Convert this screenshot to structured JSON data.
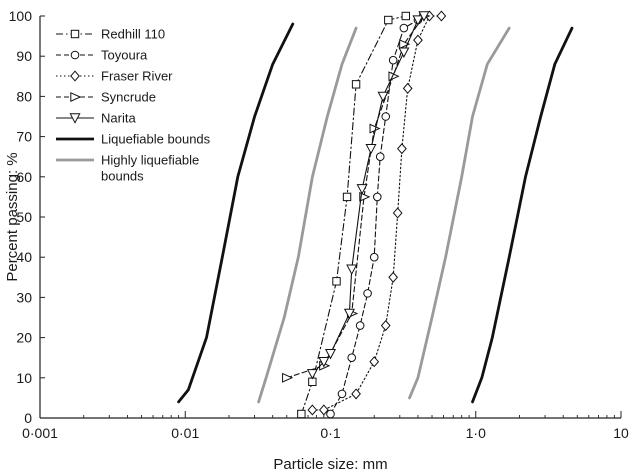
{
  "chart_data": {
    "type": "line",
    "xlabel": "Particle size: mm",
    "ylabel": "Percent passing: %",
    "x_scale": "log",
    "xlim": [
      0.001,
      10
    ],
    "ylim": [
      0,
      100
    ],
    "x_ticks": [
      0.001,
      0.01,
      0.1,
      1,
      10
    ],
    "x_tick_labels": [
      "0·001",
      "0·01",
      "0·1",
      "1·0",
      "10"
    ],
    "y_ticks": [
      0,
      10,
      20,
      30,
      40,
      50,
      60,
      70,
      80,
      90,
      100
    ],
    "y_tick_labels": [
      "0",
      "10",
      "20",
      "30",
      "40",
      "50",
      "60",
      "70",
      "80",
      "90",
      "100"
    ],
    "grid": false,
    "legend_position": "top-left",
    "series": [
      {
        "name": "Redhill 110",
        "marker": "square",
        "dash": "dash-dot",
        "color": "#111111",
        "points": [
          [
            0.063,
            1
          ],
          [
            0.075,
            9
          ],
          [
            0.11,
            34
          ],
          [
            0.13,
            55
          ],
          [
            0.15,
            83
          ],
          [
            0.25,
            99
          ],
          [
            0.33,
            100
          ]
        ]
      },
      {
        "name": "Toyoura",
        "marker": "circle",
        "dash": "dashed",
        "color": "#111111",
        "points": [
          [
            0.1,
            1
          ],
          [
            0.12,
            6
          ],
          [
            0.14,
            15
          ],
          [
            0.16,
            23
          ],
          [
            0.18,
            31
          ],
          [
            0.2,
            40
          ],
          [
            0.21,
            55
          ],
          [
            0.22,
            65
          ],
          [
            0.24,
            75
          ],
          [
            0.27,
            89
          ],
          [
            0.32,
            97
          ],
          [
            0.4,
            99
          ]
        ]
      },
      {
        "name": "Fraser River",
        "marker": "diamond",
        "dash": "dotted",
        "color": "#111111",
        "points": [
          [
            0.075,
            2
          ],
          [
            0.09,
            2
          ],
          [
            0.15,
            6
          ],
          [
            0.2,
            14
          ],
          [
            0.24,
            23
          ],
          [
            0.27,
            35
          ],
          [
            0.29,
            51
          ],
          [
            0.31,
            67
          ],
          [
            0.34,
            82
          ],
          [
            0.4,
            94
          ],
          [
            0.48,
            100
          ],
          [
            0.58,
            100
          ]
        ]
      },
      {
        "name": "Syncrude",
        "marker": "triangle-right",
        "dash": "dashed",
        "color": "#111111",
        "points": [
          [
            0.05,
            10
          ],
          [
            0.09,
            13
          ],
          [
            0.14,
            26
          ],
          [
            0.17,
            55
          ],
          [
            0.2,
            72
          ],
          [
            0.27,
            85
          ],
          [
            0.32,
            93
          ],
          [
            0.44,
            100
          ]
        ]
      },
      {
        "name": "Narita",
        "marker": "triangle-down",
        "dash": "solid",
        "color": "#111111",
        "points": [
          [
            0.075,
            11
          ],
          [
            0.09,
            14
          ],
          [
            0.1,
            16
          ],
          [
            0.135,
            26
          ],
          [
            0.14,
            37
          ],
          [
            0.165,
            57
          ],
          [
            0.19,
            67
          ],
          [
            0.23,
            80
          ],
          [
            0.32,
            91
          ],
          [
            0.4,
            99
          ],
          [
            0.44,
            100
          ]
        ]
      },
      {
        "name": "Liquefiable bounds",
        "marker": "none",
        "dash": "solid",
        "color": "#111111",
        "width": "thick",
        "points": [
          [
            0.009,
            4
          ],
          [
            0.0105,
            7
          ],
          [
            0.014,
            20
          ],
          [
            0.018,
            40
          ],
          [
            0.023,
            60
          ],
          [
            0.03,
            75
          ],
          [
            0.04,
            88
          ],
          [
            0.055,
            98
          ]
        ]
      },
      {
        "name": "",
        "marker": "none",
        "dash": "solid",
        "color": "#111111",
        "width": "thick",
        "points": [
          [
            0.95,
            4
          ],
          [
            1.1,
            10
          ],
          [
            1.3,
            20
          ],
          [
            1.7,
            40
          ],
          [
            2.2,
            60
          ],
          [
            2.8,
            75
          ],
          [
            3.5,
            88
          ],
          [
            4.6,
            97
          ]
        ]
      },
      {
        "name": "Highly liquefiable bounds",
        "marker": "none",
        "dash": "solid",
        "color": "#9a9a9a",
        "width": "thick",
        "points": [
          [
            0.032,
            4
          ],
          [
            0.036,
            10
          ],
          [
            0.048,
            25
          ],
          [
            0.06,
            40
          ],
          [
            0.075,
            60
          ],
          [
            0.095,
            75
          ],
          [
            0.12,
            88
          ],
          [
            0.15,
            97
          ]
        ]
      },
      {
        "name": "",
        "marker": "none",
        "dash": "solid",
        "color": "#9a9a9a",
        "width": "thick",
        "points": [
          [
            0.35,
            5
          ],
          [
            0.4,
            10
          ],
          [
            0.5,
            25
          ],
          [
            0.62,
            40
          ],
          [
            0.8,
            60
          ],
          [
            0.95,
            75
          ],
          [
            1.2,
            88
          ],
          [
            1.7,
            97
          ]
        ]
      }
    ]
  }
}
